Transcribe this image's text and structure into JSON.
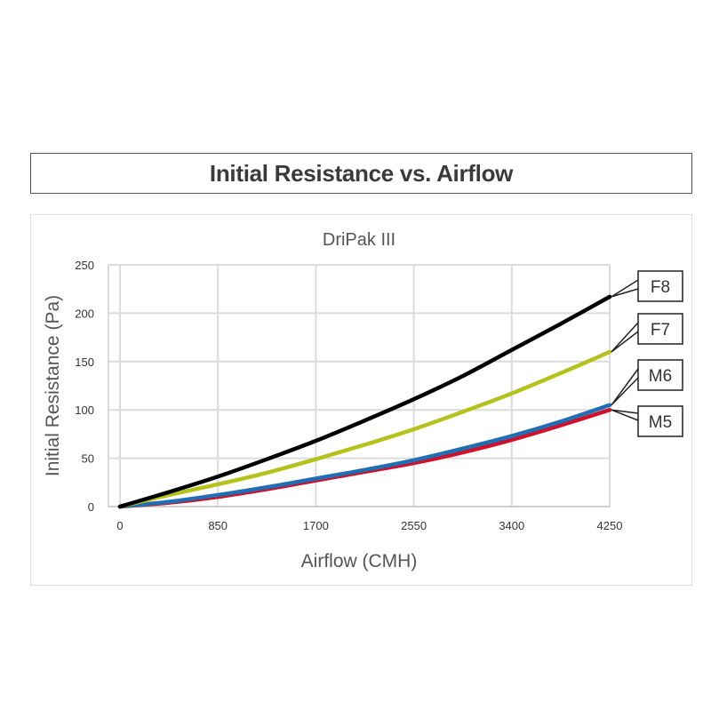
{
  "header": {
    "title": "Initial Resistance vs. Airflow"
  },
  "chart_data": {
    "type": "line",
    "subtitle": "DriPak III",
    "xlabel": "Airflow (CMH)",
    "ylabel": "Initial Resistance (Pa)",
    "xticks": [
      0,
      850,
      1700,
      2550,
      3400,
      4250
    ],
    "yticks": [
      0,
      50,
      100,
      150,
      200,
      250
    ],
    "xlim": [
      -100,
      4250
    ],
    "ylim": [
      0,
      250
    ],
    "grid": true,
    "legend_placement": "right-callouts",
    "series": [
      {
        "name": "F8",
        "color": "#000000",
        "x": [
          0,
          425,
          850,
          1275,
          1700,
          2125,
          2550,
          2975,
          3400,
          3825,
          4250
        ],
        "y": [
          0,
          15,
          31,
          49,
          68,
          89,
          111,
          135,
          162,
          189,
          217
        ]
      },
      {
        "name": "F7",
        "color": "#b5c21b",
        "x": [
          0,
          425,
          850,
          1275,
          1700,
          2125,
          2550,
          2975,
          3400,
          3825,
          4250
        ],
        "y": [
          0,
          12,
          23,
          35,
          49,
          64,
          80,
          98,
          117,
          138,
          160
        ]
      },
      {
        "name": "M6",
        "color": "#1f6fb5",
        "x": [
          0,
          425,
          850,
          1275,
          1700,
          2125,
          2550,
          2975,
          3400,
          3825,
          4250
        ],
        "y": [
          0,
          5,
          12,
          20,
          29,
          38,
          48,
          60,
          73,
          88,
          105
        ]
      },
      {
        "name": "M5",
        "color": "#d0112b",
        "x": [
          0,
          425,
          850,
          1275,
          1700,
          2125,
          2550,
          2975,
          3400,
          3825,
          4250
        ],
        "y": [
          0,
          4,
          10,
          18,
          27,
          36,
          45,
          56,
          69,
          84,
          100
        ]
      }
    ]
  }
}
